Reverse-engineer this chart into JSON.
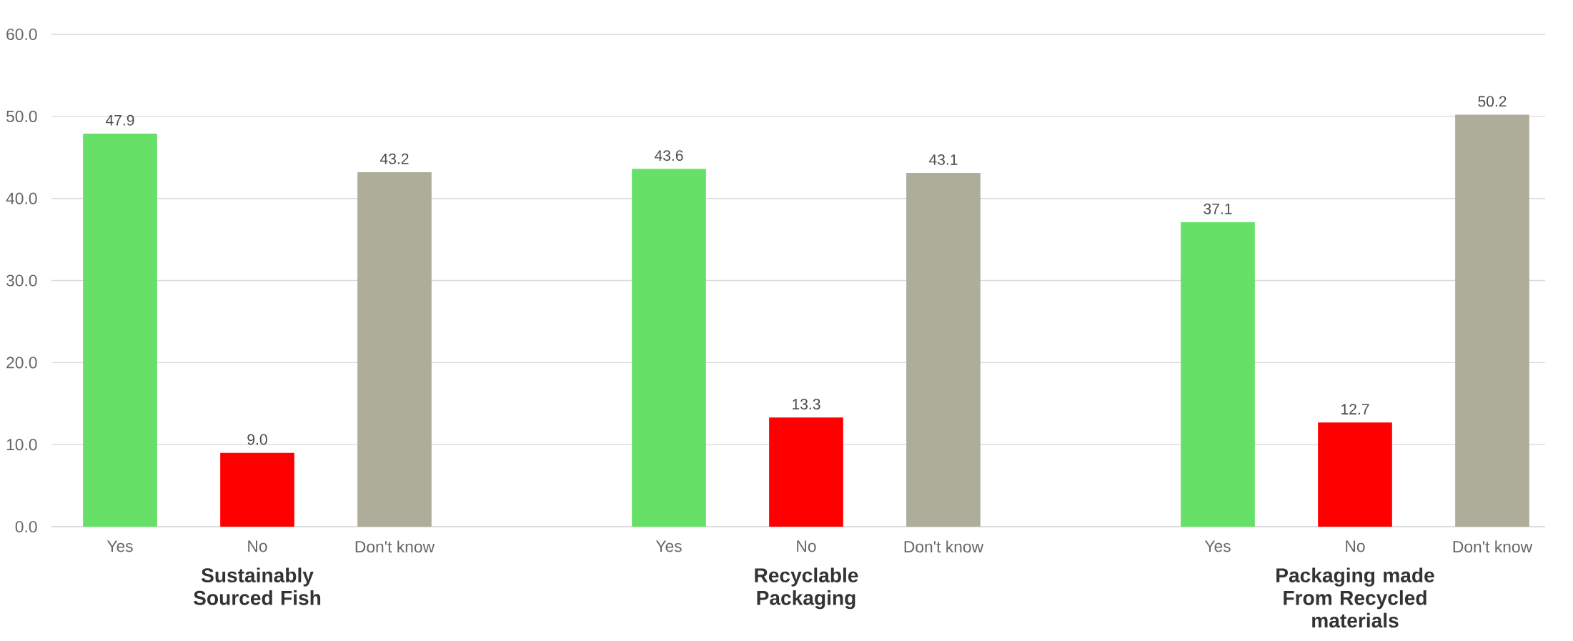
{
  "chart_data": {
    "type": "bar",
    "categories": [
      "Yes",
      "No",
      "Don't know",
      null,
      "Yes",
      "No",
      "Don't know",
      null,
      "Yes",
      "No",
      "Don't know"
    ],
    "values": [
      47.9,
      9.0,
      43.2,
      null,
      43.6,
      13.3,
      43.1,
      null,
      37.1,
      12.7,
      50.2
    ],
    "value_labels": [
      "47.9",
      "9.0",
      "43.2",
      null,
      "43.6",
      "13.3",
      "43.1",
      null,
      "37.1",
      "12.7",
      "50.2"
    ],
    "colors": [
      "#66e066",
      "#ff0000",
      "#adad9a",
      null,
      "#66e066",
      "#ff0000",
      "#adad9a",
      null,
      "#66e066",
      "#ff0000",
      "#adad9a"
    ],
    "ylim": [
      0,
      60
    ],
    "yticks": [
      {
        "value": 0,
        "label": "0.0"
      },
      {
        "value": 10,
        "label": "10.0"
      },
      {
        "value": 20,
        "label": "20.0"
      },
      {
        "value": 30,
        "label": "30.0"
      },
      {
        "value": 40,
        "label": "40.0"
      },
      {
        "value": 50,
        "label": "50.0"
      },
      {
        "value": 60,
        "label": "60.0"
      }
    ],
    "grid": "y",
    "annotations": [
      "Sustainably Sourced Fish",
      "Recyclable Packaging",
      "Packaging made From Recycled materials"
    ]
  }
}
